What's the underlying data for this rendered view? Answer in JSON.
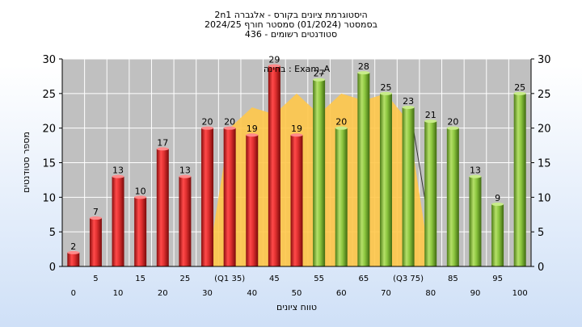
{
  "chart_data": {
    "type": "bar",
    "title_lines": [
      "היסטוגרמת ציונים בקורס - אלגברה 2n1",
      "בסמסטר  (01/2024)  סמסטר חורף 2024/25",
      "סטודנטים רשומים - 436"
    ],
    "xlabel": "טווח ציונים",
    "ylabel": "מספר סטודנטים",
    "ylim": [
      0,
      30
    ],
    "yticks": [
      0,
      5,
      10,
      15,
      20,
      25,
      30
    ],
    "categories": [
      "0",
      "5",
      "10",
      "15",
      "20",
      "25",
      "30",
      "35",
      "40",
      "45",
      "50",
      "55",
      "60",
      "65",
      "70",
      "75",
      "80",
      "85",
      "90",
      "95",
      "100"
    ],
    "values": [
      2,
      7,
      13,
      10,
      17,
      13,
      20,
      20,
      19,
      29,
      19,
      27,
      20,
      28,
      25,
      23,
      21,
      20,
      13,
      9,
      25
    ],
    "x_tick_labels": [
      "0",
      "5",
      "10",
      "15",
      "20",
      "25",
      "30",
      "(Q1 35)",
      "40",
      "45",
      "50",
      "55",
      "60",
      "65",
      "70",
      "(Q3 75)",
      "80",
      "85",
      "90",
      "95",
      "100"
    ],
    "x_tick_rows": [
      "lower",
      "upper",
      "lower",
      "upper",
      "lower",
      "upper",
      "lower",
      "upper",
      "lower",
      "upper",
      "lower",
      "upper",
      "lower",
      "upper",
      "lower",
      "upper",
      "lower",
      "upper",
      "lower",
      "upper",
      "lower"
    ],
    "bar_color_groups": [
      "red",
      "red",
      "red",
      "red",
      "red",
      "red",
      "red",
      "red",
      "red",
      "red",
      "red",
      "green",
      "green",
      "green",
      "green",
      "green",
      "green",
      "green",
      "green",
      "green",
      "green"
    ],
    "comparison_series": {
      "label": "בחינה : Exam_A",
      "values": [
        0,
        0,
        0,
        0,
        0,
        0,
        0,
        20,
        23,
        22,
        25,
        22,
        25,
        24,
        25,
        21,
        0,
        0,
        0,
        0,
        0
      ]
    },
    "grid": true,
    "colors": {
      "red": "#e03030",
      "green": "#8cc63f",
      "comparison": "#ffc84a",
      "plot_bg": "#c0c0c0",
      "grid": "#ffffff"
    }
  }
}
